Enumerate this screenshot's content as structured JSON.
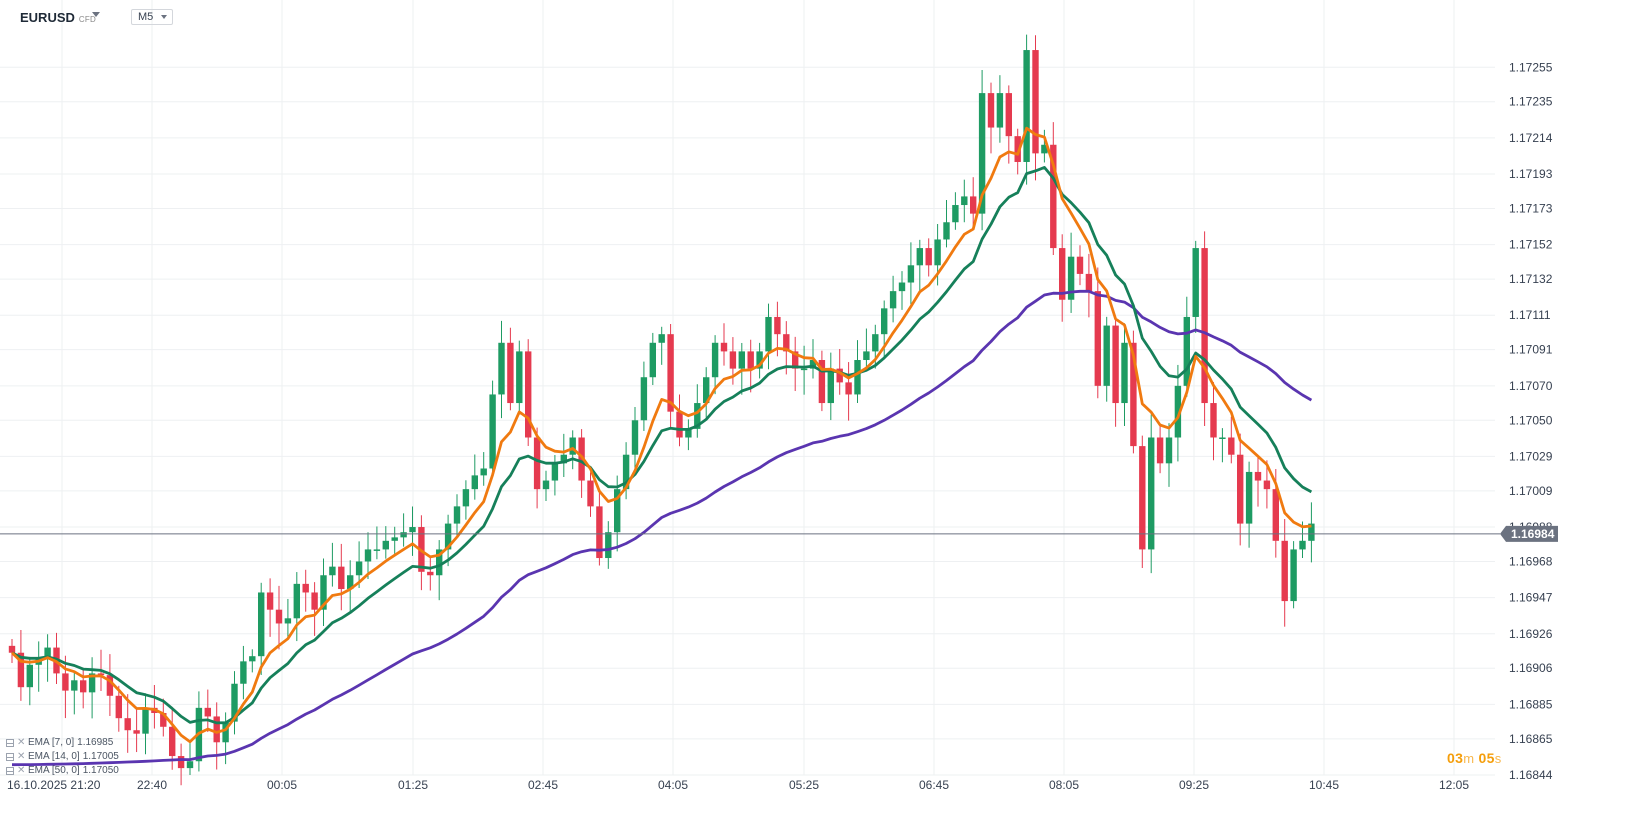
{
  "header": {
    "symbol": "EURUSD",
    "symbol_tag": "CFD",
    "timeframe": "M5"
  },
  "legend": [
    {
      "label": "EMA [7, 0]",
      "value": "1.16985"
    },
    {
      "label": "EMA [14, 0]",
      "value": "1.17005"
    },
    {
      "label": "EMA [50, 0]",
      "value": "1.17050"
    }
  ],
  "timer": {
    "min": "03",
    "min_unit": "m",
    "sec": "05",
    "sec_unit": "s"
  },
  "colors": {
    "up": "#1e9b63",
    "down": "#e53a4f",
    "ema7": "#f07a10",
    "ema14": "#16805a",
    "ema50": "#5a35b0",
    "grid": "#eef0f2",
    "price_tag": "#6b7280"
  },
  "chart_data": {
    "type": "candlestick",
    "y_ticks": [
      "1.17255",
      "1.17235",
      "1.17214",
      "1.17193",
      "1.17173",
      "1.17152",
      "1.17132",
      "1.17111",
      "1.17091",
      "1.17070",
      "1.17050",
      "1.17029",
      "1.17009",
      "1.16988",
      "1.16968",
      "1.16947",
      "1.16926",
      "1.16906",
      "1.16885",
      "1.16865",
      "1.16844"
    ],
    "x_ticks": [
      "16.10.2025  21:20",
      "22:40",
      "00:05",
      "01:25",
      "02:45",
      "04:05",
      "05:25",
      "06:45",
      "08:05",
      "09:25",
      "10:45",
      "12:05"
    ],
    "current_price": "1.16984",
    "ylim": [
      1.16844,
      1.17272
    ],
    "candles_close": [
      1.16915,
      1.16895,
      1.16908,
      1.16912,
      1.16918,
      1.16903,
      1.16893,
      1.16899,
      1.16892,
      1.16903,
      1.16902,
      1.1689,
      1.16877,
      1.1687,
      1.16868,
      1.16883,
      1.1688,
      1.16872,
      1.16855,
      1.16848,
      1.16852,
      1.16883,
      1.16878,
      1.16863,
      1.16875,
      1.16897,
      1.1691,
      1.16913,
      1.1695,
      1.1694,
      1.16932,
      1.16935,
      1.16955,
      1.1695,
      1.1694,
      1.1696,
      1.16965,
      1.16952,
      1.1696,
      1.16968,
      1.16975,
      1.16975,
      1.1698,
      1.16982,
      1.16985,
      1.16988,
      1.16962,
      1.1696,
      1.16975,
      1.1699,
      1.17,
      1.1701,
      1.17018,
      1.17022,
      1.17065,
      1.17095,
      1.1706,
      1.1709,
      1.1704,
      1.1701,
      1.17015,
      1.17025,
      1.1703,
      1.1704,
      1.17015,
      1.17,
      1.1697,
      1.16985,
      1.1701,
      1.1703,
      1.1705,
      1.17075,
      1.17095,
      1.171,
      1.17055,
      1.1704,
      1.17045,
      1.1706,
      1.17075,
      1.17095,
      1.1709,
      1.1708,
      1.1709,
      1.1708,
      1.1709,
      1.1711,
      1.171,
      1.1709,
      1.1708,
      1.1708,
      1.17085,
      1.1706,
      1.1708,
      1.17072,
      1.17065,
      1.17085,
      1.1709,
      1.171,
      1.17115,
      1.17125,
      1.1713,
      1.1714,
      1.1715,
      1.1714,
      1.17155,
      1.17165,
      1.17175,
      1.1718,
      1.1717,
      1.1724,
      1.1722,
      1.1724,
      1.17215,
      1.172,
      1.17265,
      1.17205,
      1.1721,
      1.1715,
      1.1712,
      1.17145,
      1.17135,
      1.17125,
      1.1707,
      1.17105,
      1.1706,
      1.17095,
      1.17035,
      1.16975,
      1.1704,
      1.17025,
      1.1704,
      1.1707,
      1.1711,
      1.1715,
      1.1706,
      1.1704,
      1.1704,
      1.1703,
      1.1699,
      1.1702,
      1.17015,
      1.1701,
      1.1698,
      1.16945,
      1.16975,
      1.1698,
      1.1699
    ]
  }
}
